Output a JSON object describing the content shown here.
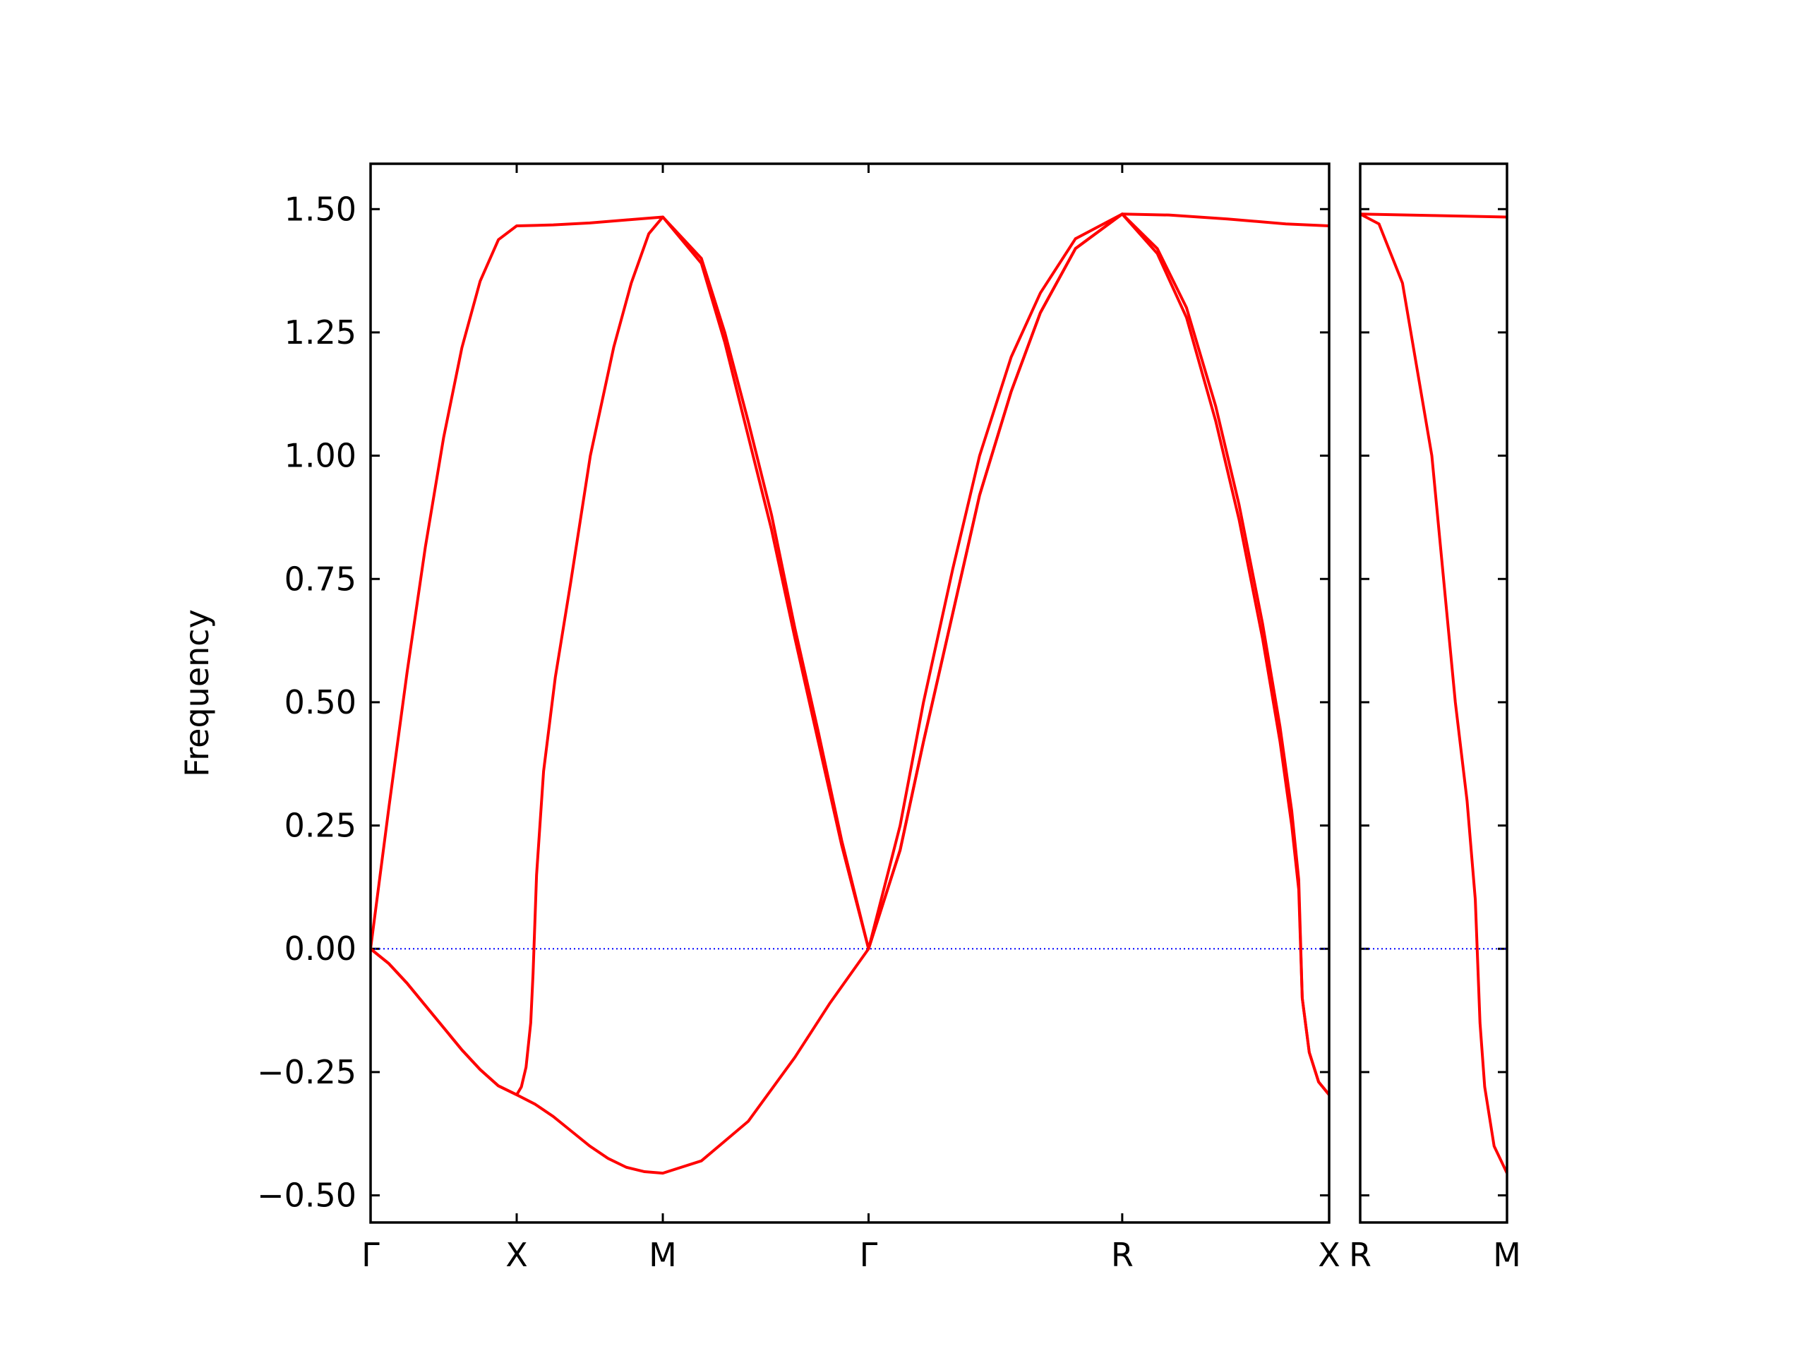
{
  "chart_data": [
    {
      "type": "line",
      "ylabel": "Frequency",
      "xlim": [
        0,
        3.28
      ],
      "ylim": [
        -0.555,
        1.592
      ],
      "xticks": [
        {
          "value": 0,
          "label": "Γ"
        },
        {
          "value": 0.5,
          "label": "X"
        },
        {
          "value": 1.0,
          "label": "M"
        },
        {
          "value": 1.704,
          "label": "Γ"
        },
        {
          "value": 2.572,
          "label": "R"
        },
        {
          "value": 3.28,
          "label": "X"
        }
      ],
      "yticks": [
        {
          "value": -0.5,
          "label": "−0.50"
        },
        {
          "value": -0.25,
          "label": "−0.25"
        },
        {
          "value": 0,
          "label": "0.00"
        },
        {
          "value": 0.25,
          "label": "0.25"
        },
        {
          "value": 0.5,
          "label": "0.50"
        },
        {
          "value": 0.75,
          "label": "0.75"
        },
        {
          "value": 1.0,
          "label": "1.00"
        },
        {
          "value": 1.25,
          "label": "1.25"
        },
        {
          "value": 1.5,
          "label": "1.50"
        }
      ],
      "zero_line": 0,
      "zero_line_color": "blue",
      "series": [
        {
          "color": "red",
          "x": [
            0,
            0.0625,
            0.125,
            0.1875,
            0.25,
            0.3125,
            0.375,
            0.4375,
            0.5,
            0.5625,
            0.625,
            0.6875,
            0.75,
            0.8125,
            0.875,
            0.9375,
            1.0,
            1.132,
            1.292,
            1.452,
            1.572,
            1.704,
            1.812,
            1.892,
            1.992,
            2.084,
            2.192,
            2.292,
            2.412,
            2.572,
            2.692,
            2.792,
            2.892,
            2.972,
            3.052,
            3.112,
            3.152,
            3.176,
            3.188,
            3.212,
            3.244,
            3.28
          ],
          "values": [
            0,
            -0.03,
            -0.07,
            -0.115,
            -0.16,
            -0.205,
            -0.245,
            -0.278,
            -0.296,
            -0.315,
            -0.34,
            -0.37,
            -0.4,
            -0.425,
            -0.443,
            -0.452,
            -0.455,
            -0.43,
            -0.35,
            -0.22,
            -0.11,
            0,
            0.2,
            0.42,
            0.68,
            0.92,
            1.13,
            1.29,
            1.42,
            1.49,
            1.41,
            1.28,
            1.07,
            0.87,
            0.63,
            0.42,
            0.25,
            0.12,
            -0.1,
            -0.21,
            -0.27,
            -0.296
          ]
        },
        {
          "color": "red",
          "x": [
            0,
            0.0625,
            0.125,
            0.1875,
            0.25,
            0.3125,
            0.375,
            0.4375,
            0.5,
            0.516,
            0.532,
            0.548,
            0.556,
            0.568,
            0.592,
            0.632,
            0.684,
            0.752,
            0.832,
            0.892,
            0.952,
            1.0,
            1.132,
            1.212,
            1.292,
            1.372,
            1.452,
            1.532,
            1.612,
            1.704,
            1.812,
            1.892,
            1.992,
            2.084,
            2.192,
            2.292,
            2.412,
            2.572,
            2.692,
            2.792,
            2.892,
            2.972,
            3.052,
            3.112,
            3.152,
            3.176,
            3.188,
            3.212,
            3.244,
            3.28
          ],
          "values": [
            0,
            -0.03,
            -0.07,
            -0.115,
            -0.16,
            -0.205,
            -0.245,
            -0.278,
            -0.296,
            -0.28,
            -0.24,
            -0.15,
            -0.05,
            0.15,
            0.36,
            0.55,
            0.74,
            1.0,
            1.22,
            1.35,
            1.45,
            1.484,
            1.39,
            1.23,
            1.04,
            0.85,
            0.63,
            0.42,
            0.21,
            0,
            0.2,
            0.42,
            0.68,
            0.92,
            1.13,
            1.29,
            1.42,
            1.49,
            1.42,
            1.3,
            1.1,
            0.9,
            0.66,
            0.45,
            0.28,
            0.14,
            -0.1,
            -0.21,
            -0.27,
            -0.296
          ]
        },
        {
          "color": "red",
          "x": [
            0,
            0.0625,
            0.125,
            0.1875,
            0.25,
            0.3125,
            0.375,
            0.4375,
            0.5,
            0.625,
            0.75,
            0.875,
            1.0,
            1.132,
            1.212,
            1.292,
            1.372,
            1.452,
            1.532,
            1.612,
            1.704,
            1.812,
            1.892,
            1.992,
            2.084,
            2.192,
            2.292,
            2.412,
            2.572,
            2.732,
            2.932,
            3.132,
            3.28
          ],
          "values": [
            0,
            0.286,
            0.561,
            0.815,
            1.037,
            1.219,
            1.354,
            1.438,
            1.466,
            1.468,
            1.472,
            1.478,
            1.484,
            1.4,
            1.25,
            1.07,
            0.88,
            0.65,
            0.44,
            0.22,
            0,
            0.25,
            0.5,
            0.77,
            1.0,
            1.2,
            1.33,
            1.44,
            1.49,
            1.488,
            1.48,
            1.47,
            1.466
          ]
        }
      ]
    },
    {
      "type": "line",
      "xlim": [
        0,
        0.5
      ],
      "ylim": [
        -0.555,
        1.592
      ],
      "xticks": [
        {
          "value": 0,
          "label": "R"
        },
        {
          "value": 0.5,
          "label": "M"
        }
      ],
      "yticks": [
        -0.5,
        -0.25,
        0,
        0.25,
        0.5,
        0.75,
        1,
        1.25,
        1.5
      ],
      "zero_line": 0,
      "zero_line_color": "blue",
      "series": [
        {
          "color": "red",
          "x": [
            0,
            0.25,
            0.5
          ],
          "values": [
            1.49,
            1.487,
            1.484
          ]
        },
        {
          "color": "red",
          "x": [
            0,
            0.064,
            0.144,
            0.244,
            0.324,
            0.364,
            0.392,
            0.408,
            0.424,
            0.456,
            0.5
          ],
          "values": [
            1.49,
            1.47,
            1.35,
            1.0,
            0.5,
            0.3,
            0.1,
            -0.15,
            -0.28,
            -0.4,
            -0.455
          ]
        }
      ]
    }
  ]
}
